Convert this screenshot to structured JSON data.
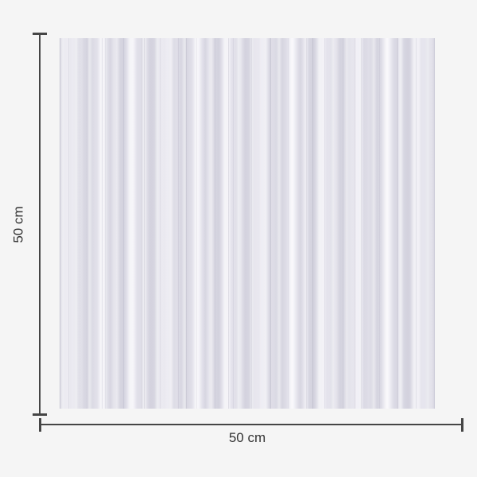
{
  "diagram": {
    "title": "product dimension diagram",
    "swatch": {
      "texture": "vertical-stripe fabric swatch",
      "colors": {
        "stripe_dark": "#d6d5e0",
        "stripe_mid": "#e6e5ed",
        "stripe_light": "#f6f5f9"
      }
    },
    "dimensions": {
      "height_label": "50 cm",
      "width_label": "50 cm"
    },
    "colors": {
      "background": "#f5f5f5",
      "dimension_line": "#454545",
      "label_text": "#333333"
    }
  }
}
